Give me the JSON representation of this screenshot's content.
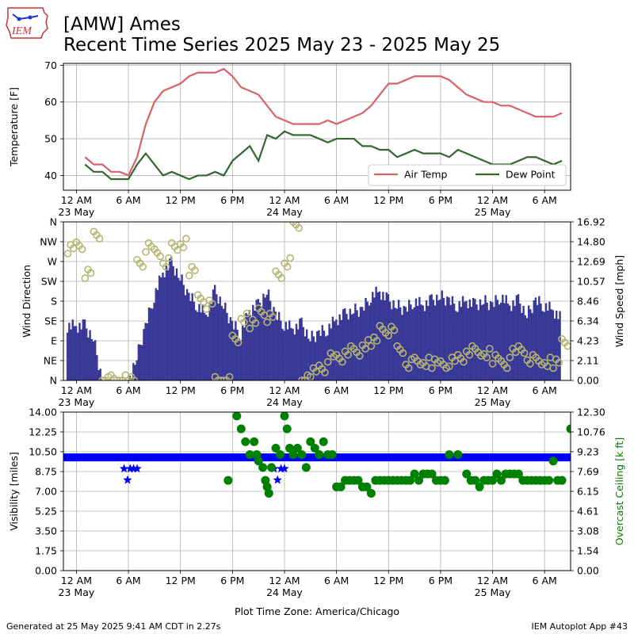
{
  "header": {
    "title_line1": "[AMW] Ames",
    "title_line2": "Recent Time Series 2025 May 23 - 2025 May 25",
    "logo_text": "IEM"
  },
  "footer": {
    "generated": "Generated at 25 May 2025 9:41 AM CDT in 2.27s",
    "app": "IEM Autoplot App #43",
    "timezone_label": "Plot Time Zone: America/Chicago"
  },
  "colors": {
    "air_temp": "#d9616b",
    "dew_point": "#336633",
    "wind_speed_bars": "#393896",
    "wind_dir_markers": "#b5b573",
    "visibility": "#0000ff",
    "ceiling": "#008000",
    "grid": "#b0b0b0"
  },
  "x_axis": {
    "start_hour": -1.5,
    "end_hour": 57,
    "ticks": [
      {
        "hour": 0,
        "label": "12 AM",
        "date": "23 May"
      },
      {
        "hour": 6,
        "label": "6 AM",
        "date": ""
      },
      {
        "hour": 12,
        "label": "12 PM",
        "date": ""
      },
      {
        "hour": 18,
        "label": "6 PM",
        "date": ""
      },
      {
        "hour": 24,
        "label": "12 AM",
        "date": "24 May"
      },
      {
        "hour": 30,
        "label": "6 AM",
        "date": ""
      },
      {
        "hour": 36,
        "label": "12 PM",
        "date": ""
      },
      {
        "hour": 42,
        "label": "6 PM",
        "date": ""
      },
      {
        "hour": 48,
        "label": "12 AM",
        "date": "25 May"
      },
      {
        "hour": 54,
        "label": "6 AM",
        "date": ""
      }
    ]
  },
  "chart_data": [
    {
      "type": "line",
      "ylabel": "Temperature [F]",
      "ylim": [
        36,
        70.5
      ],
      "yticks": [
        40,
        50,
        60,
        70
      ],
      "legend_position": "lower-right",
      "grid": true,
      "x_hours": [
        1,
        2,
        3,
        4,
        5,
        6,
        7,
        8,
        9,
        10,
        11,
        12,
        13,
        14,
        15,
        16,
        17,
        18,
        19,
        20,
        21,
        22,
        23,
        24,
        25,
        26,
        27,
        28,
        29,
        30,
        31,
        32,
        33,
        34,
        35,
        36,
        37,
        38,
        39,
        40,
        41,
        42,
        43,
        44,
        45,
        46,
        47,
        48,
        49,
        50,
        51,
        52,
        53,
        54,
        55,
        56
      ],
      "series": [
        {
          "name": "Air Temp",
          "values": [
            45,
            43,
            43,
            41,
            41,
            40,
            45,
            54,
            60,
            63,
            64,
            65,
            67,
            68,
            68,
            68,
            69,
            67,
            64,
            63,
            62,
            59,
            56,
            55,
            54,
            54,
            54,
            54,
            55,
            54,
            55,
            56,
            57,
            59,
            62,
            65,
            65,
            66,
            67,
            67,
            67,
            67,
            66,
            64,
            62,
            61,
            60,
            60,
            59,
            59,
            58,
            57,
            56,
            56,
            56,
            57
          ]
        },
        {
          "name": "Dew Point",
          "values": [
            43,
            41,
            41,
            39,
            39,
            39,
            43,
            46,
            43,
            40,
            41,
            40,
            39,
            40,
            40,
            41,
            40,
            44,
            46,
            48,
            44,
            51,
            50,
            52,
            51,
            51,
            51,
            50,
            49,
            50,
            50,
            50,
            48,
            48,
            47,
            47,
            45,
            46,
            47,
            46,
            46,
            46,
            45,
            47,
            46,
            45,
            44,
            43,
            43,
            43,
            44,
            45,
            45,
            44,
            43,
            44
          ]
        }
      ]
    },
    {
      "type": "bar",
      "ylabel": "Wind Direction",
      "y2label": "Wind Speed [mph]",
      "direction_ticks": [
        "N",
        "NE",
        "E",
        "SE",
        "S",
        "SW",
        "W",
        "NW",
        "N"
      ],
      "speed_ticks": [
        "0.00",
        "2.11",
        "4.23",
        "6.34",
        "8.46",
        "10.57",
        "12.69",
        "14.80",
        "16.92"
      ],
      "speed_max": 16.92,
      "grid": true,
      "series": [
        {
          "name": "Wind Speed",
          "x_hours": [
            -1,
            0,
            1,
            2,
            3,
            4,
            5,
            6,
            7,
            8,
            9,
            10,
            11,
            12,
            13,
            14,
            15,
            16,
            17,
            18,
            19,
            20,
            21,
            22,
            23,
            24,
            25,
            26,
            27,
            28,
            29,
            30,
            31,
            32,
            33,
            34,
            35,
            36,
            37,
            38,
            39,
            40,
            41,
            42,
            43,
            44,
            45,
            46,
            47,
            48,
            49,
            50,
            51,
            52,
            53,
            54,
            55,
            56
          ],
          "values": [
            5.8,
            5.8,
            5.8,
            4.5,
            0,
            0,
            0,
            0,
            2.5,
            5.8,
            9,
            11.5,
            12.5,
            11,
            9,
            8,
            7,
            9.5,
            8,
            6,
            5,
            7.5,
            8,
            9.5,
            7,
            6,
            5.5,
            6,
            4.5,
            5,
            5.5,
            6.5,
            7,
            7.5,
            7.5,
            9,
            9.5,
            8.5,
            8,
            7.5,
            8.5,
            8,
            8.5,
            9,
            8.5,
            8,
            8.5,
            8,
            8.5,
            8,
            9,
            8,
            8.5,
            7,
            8.5,
            8,
            7.5,
            6.5
          ]
        },
        {
          "name": "Wind Direction",
          "x_hours": [
            -1,
            0,
            1,
            2,
            3,
            4,
            5,
            6,
            7,
            8,
            9,
            10,
            11,
            12,
            13,
            14,
            15,
            16,
            17,
            18,
            19,
            20,
            21,
            22,
            23,
            24,
            25,
            26,
            27,
            28,
            29,
            30,
            31,
            32,
            33,
            34,
            35,
            36,
            37,
            38,
            39,
            40,
            41,
            42,
            43,
            44,
            45,
            46,
            47,
            48,
            49,
            50,
            51,
            52,
            53,
            54,
            55,
            56
          ],
          "values": [
            300,
            310,
            240,
            330,
            0,
            0,
            0,
            0,
            270,
            300,
            290,
            270,
            300,
            310,
            250,
            190,
            170,
            0,
            0,
            90,
            140,
            130,
            160,
            140,
            240,
            270,
            350,
            0,
            20,
            30,
            50,
            50,
            70,
            60,
            80,
            90,
            120,
            110,
            70,
            40,
            40,
            40,
            40,
            40,
            40,
            50,
            70,
            60,
            60,
            50,
            40,
            60,
            70,
            50,
            40,
            40,
            40,
            90
          ]
        }
      ]
    },
    {
      "type": "scatter",
      "ylabel": "Visibility [miles]",
      "y2label": "Overcast Ceiling [k ft]",
      "ylim": [
        0,
        14
      ],
      "yticks": [
        "0.00",
        "1.75",
        "3.50",
        "5.25",
        "7.00",
        "8.75",
        "10.50",
        "12.25",
        "14.00"
      ],
      "y2lim": [
        0,
        12.3
      ],
      "y2ticks": [
        "0.00",
        "1.54",
        "3.08",
        "4.61",
        "6.15",
        "7.69",
        "9.23",
        "10.76",
        "12.30"
      ],
      "grid": true,
      "series": [
        {
          "name": "Visibility",
          "marker": "star",
          "x_hours": [
            5.5,
            5.9,
            6.2,
            6.6,
            7.0,
            22.8,
            23.2,
            23.6,
            24.0
          ],
          "values": [
            9,
            8,
            9,
            9,
            9,
            9,
            8,
            9,
            9
          ],
          "baseline_value": 10,
          "baseline_range": [
            -1.5,
            57
          ]
        },
        {
          "name": "Overcast Ceiling",
          "marker": "circle",
          "x_hours": [
            17.5,
            18.5,
            19,
            19.5,
            20,
            20.5,
            20.8,
            21,
            21.5,
            21.8,
            22,
            22.2,
            22.5,
            23,
            23.5,
            24,
            24.3,
            24.6,
            25,
            25.5,
            26,
            26.5,
            27,
            27.5,
            28,
            28.5,
            29,
            29.5,
            30,
            30.5,
            31,
            31.5,
            32,
            32.5,
            33,
            33.5,
            34,
            34.5,
            35,
            35.5,
            36,
            36.5,
            37,
            37.5,
            38,
            38.5,
            39,
            39.5,
            40,
            40.5,
            41,
            41.5,
            42,
            42.5,
            43,
            44,
            45,
            45.5,
            46,
            46.5,
            47,
            47.5,
            48,
            48.5,
            49,
            49.5,
            50,
            50.5,
            51,
            51.5,
            52,
            52.5,
            53,
            53.5,
            54,
            54.5,
            55,
            55.5,
            56,
            57
          ],
          "values": [
            7,
            12,
            11,
            10,
            9,
            10,
            9,
            8.5,
            8,
            7,
            6.5,
            6,
            8,
            9.5,
            9,
            12,
            11,
            9.5,
            9,
            9.5,
            9,
            8,
            10,
            9.5,
            9,
            10,
            9,
            9,
            6.5,
            6.5,
            7,
            7,
            7,
            7,
            6.5,
            6.5,
            6,
            7,
            7,
            7,
            7,
            7,
            7,
            7,
            7,
            7,
            7.5,
            7,
            7.5,
            7.5,
            7.5,
            7,
            7,
            7,
            9,
            9,
            7.5,
            7,
            7,
            6.5,
            7,
            7,
            7,
            7.5,
            7,
            7.5,
            7.5,
            7.5,
            7.5,
            7,
            7,
            7,
            7,
            7,
            7,
            7,
            8.5,
            7,
            7,
            11
          ]
        }
      ]
    }
  ]
}
